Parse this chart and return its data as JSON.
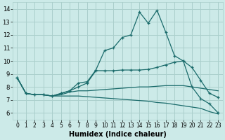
{
  "xlabel": "Humidex (Indice chaleur)",
  "xlim": [
    -0.5,
    23.5
  ],
  "ylim": [
    5.5,
    14.5
  ],
  "yticks": [
    6,
    7,
    8,
    9,
    10,
    11,
    12,
    13,
    14
  ],
  "xticks": [
    0,
    1,
    2,
    3,
    4,
    5,
    6,
    7,
    8,
    9,
    10,
    11,
    12,
    13,
    14,
    15,
    16,
    17,
    18,
    19,
    20,
    21,
    22,
    23
  ],
  "bg_color": "#cceae8",
  "grid_color": "#aacfcc",
  "line_color": "#1a6b6b",
  "lines": [
    {
      "x": [
        0,
        1,
        2,
        3,
        4,
        5,
        6,
        7,
        8,
        9,
        10,
        11,
        12,
        13,
        14,
        15,
        16,
        17,
        18,
        19,
        20,
        21,
        22,
        23
      ],
      "y": [
        8.7,
        7.5,
        7.4,
        7.4,
        7.3,
        7.5,
        7.7,
        8.3,
        8.4,
        9.3,
        10.8,
        11.0,
        11.8,
        12.0,
        13.75,
        12.9,
        13.9,
        12.2,
        10.4,
        10.0,
        8.0,
        7.1,
        6.7,
        6.0
      ],
      "marker": true
    },
    {
      "x": [
        0,
        1,
        2,
        3,
        4,
        5,
        6,
        7,
        8,
        9,
        10,
        11,
        12,
        13,
        14,
        15,
        16,
        17,
        18,
        19,
        20,
        21,
        22,
        23
      ],
      "y": [
        8.7,
        7.5,
        7.4,
        7.4,
        7.3,
        7.5,
        7.7,
        8.0,
        8.3,
        9.25,
        9.25,
        9.25,
        9.3,
        9.3,
        9.3,
        9.35,
        9.5,
        9.7,
        9.9,
        10.0,
        9.5,
        8.5,
        7.5,
        7.2
      ],
      "marker": true
    },
    {
      "x": [
        0,
        1,
        2,
        3,
        4,
        5,
        6,
        7,
        8,
        9,
        10,
        11,
        12,
        13,
        14,
        15,
        16,
        17,
        18,
        19,
        20,
        21,
        22,
        23
      ],
      "y": [
        8.7,
        7.5,
        7.4,
        7.4,
        7.3,
        7.4,
        7.6,
        7.7,
        7.7,
        7.75,
        7.8,
        7.85,
        7.9,
        7.95,
        8.0,
        8.0,
        8.05,
        8.1,
        8.1,
        8.1,
        8.0,
        7.9,
        7.8,
        7.7
      ],
      "marker": false
    },
    {
      "x": [
        0,
        1,
        2,
        3,
        4,
        5,
        6,
        7,
        8,
        9,
        10,
        11,
        12,
        13,
        14,
        15,
        16,
        17,
        18,
        19,
        20,
        21,
        22,
        23
      ],
      "y": [
        8.7,
        7.5,
        7.4,
        7.4,
        7.3,
        7.3,
        7.3,
        7.3,
        7.25,
        7.2,
        7.15,
        7.1,
        7.05,
        7.0,
        6.95,
        6.9,
        6.8,
        6.75,
        6.65,
        6.55,
        6.45,
        6.35,
        6.1,
        5.92
      ],
      "marker": false
    }
  ]
}
